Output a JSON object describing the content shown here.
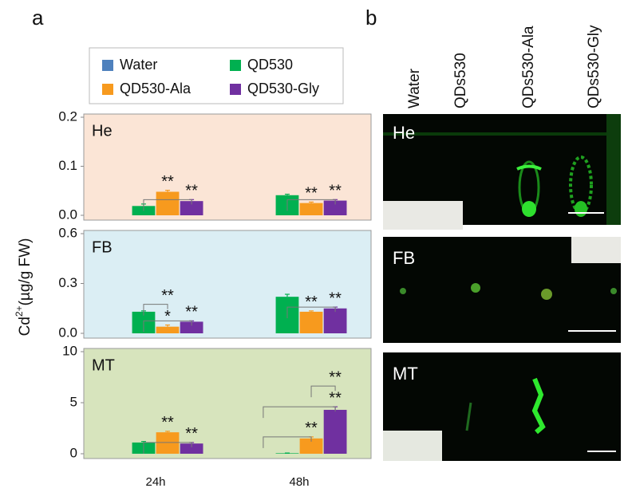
{
  "panel_a_label": "a",
  "panel_b_label": "b",
  "y_label": [
    "Cd",
    "2+",
    "(µg/g FW)"
  ],
  "categories": [
    "24h",
    "48h"
  ],
  "legend": [
    {
      "name": "Water",
      "color": "#4f81bd"
    },
    {
      "name": "QD530",
      "color": "#00b050"
    },
    {
      "name": "QD530-Ala",
      "color": "#f79a1e"
    },
    {
      "name": "QD530-Gly",
      "color": "#7030a0"
    }
  ],
  "chart_data": [
    {
      "type": "bar",
      "title": "He",
      "background": "#fbe5d6",
      "ylim": [
        0,
        0.2
      ],
      "yticks": [
        {
          "value": 0,
          "label": "0.0"
        },
        0.1,
        0.2
      ],
      "series": [
        {
          "values": [
            0,
            0
          ],
          "errors": [
            0,
            0
          ]
        },
        {
          "values": [
            0.019,
            0.041
          ],
          "errors": [
            0.004,
            0.002
          ]
        },
        {
          "values": [
            0.048,
            0.025
          ],
          "errors": [
            0.003,
            0.002
          ]
        },
        {
          "values": [
            0.029,
            0.03
          ],
          "errors": [
            0.003,
            0.002
          ]
        }
      ],
      "annotations": [
        {
          "text": "**",
          "category": 0,
          "series": 2,
          "vs": 1
        },
        {
          "text": "**",
          "category": 0,
          "series": 3,
          "vs": 1
        },
        {
          "text": "**",
          "category": 1,
          "series": 2,
          "vs": 1
        },
        {
          "text": "**",
          "category": 1,
          "series": 3,
          "vs": 1
        }
      ]
    },
    {
      "type": "bar",
      "title": "FB",
      "background": "#dbeef4",
      "ylim": [
        0,
        0.6
      ],
      "yticks": [
        {
          "value": 0,
          "label": "0.0"
        },
        0.3,
        0.6
      ],
      "series": [
        {
          "values": [
            0,
            0
          ],
          "errors": [
            0,
            0
          ]
        },
        {
          "values": [
            0.13,
            0.22
          ],
          "errors": [
            0.005,
            0.015
          ]
        },
        {
          "values": [
            0.04,
            0.13
          ],
          "errors": [
            0.01,
            0.005
          ]
        },
        {
          "values": [
            0.07,
            0.15
          ],
          "errors": [
            0.005,
            0.008
          ]
        }
      ],
      "annotations": [
        {
          "text": "*",
          "category": 0,
          "series": 2,
          "vs": 1
        },
        {
          "text": "**",
          "category": 0,
          "series": 2,
          "vs": 1
        },
        {
          "text": "**",
          "category": 0,
          "series": 3,
          "vs": 1
        },
        {
          "text": "**",
          "category": 1,
          "series": 2,
          "vs": 1
        },
        {
          "text": "**",
          "category": 1,
          "series": 3,
          "vs": 1
        }
      ]
    },
    {
      "type": "bar",
      "title": "MT",
      "background": "#d7e4bd",
      "ylim": [
        0,
        10
      ],
      "yticks": [
        0,
        5,
        10
      ],
      "series": [
        {
          "values": [
            0,
            0
          ],
          "errors": [
            0,
            0
          ]
        },
        {
          "values": [
            1.1,
            0.05
          ],
          "errors": [
            0.1,
            0.02
          ]
        },
        {
          "values": [
            2.1,
            1.5
          ],
          "errors": [
            0.1,
            0.15
          ]
        },
        {
          "values": [
            1.0,
            4.3
          ],
          "errors": [
            0.1,
            0.3
          ]
        }
      ],
      "annotations": [
        {
          "text": "**",
          "category": 0,
          "series": 2,
          "vs": 1
        },
        {
          "text": "**",
          "category": 0,
          "series": 3,
          "vs": 1
        },
        {
          "text": "**",
          "category": 1,
          "series": 2,
          "vs": 0
        },
        {
          "text": "**",
          "category": 1,
          "series": 3,
          "vs": 0
        },
        {
          "text": "**",
          "category": 1,
          "series": 3,
          "vs": 2
        }
      ]
    }
  ],
  "image_panel": {
    "columns": [
      "Water",
      "QDs530",
      "QDs530-Ala",
      "QDs530-Gly"
    ],
    "rows": [
      "He",
      "FB",
      "MT"
    ]
  }
}
